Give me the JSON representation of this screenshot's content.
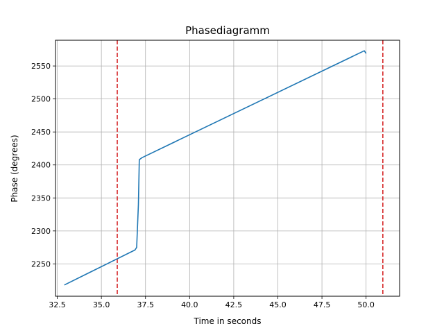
{
  "chart_data": {
    "type": "line",
    "title": "Phasediagramm",
    "xlabel": "Time in seconds",
    "ylabel": "Phase (degrees)",
    "xlim": [
      32.4,
      51.9
    ],
    "ylim": [
      2201,
      2589
    ],
    "xticks": [
      32.5,
      35.0,
      37.5,
      40.0,
      42.5,
      45.0,
      47.5,
      50.0
    ],
    "xtick_labels": [
      "32.5",
      "35.0",
      "37.5",
      "40.0",
      "42.5",
      "45.0",
      "47.5",
      "50.0"
    ],
    "yticks": [
      2250,
      2300,
      2350,
      2400,
      2450,
      2500,
      2550
    ],
    "ytick_labels": [
      "2250",
      "2300",
      "2350",
      "2400",
      "2450",
      "2500",
      "2550"
    ],
    "grid": true,
    "series": [
      {
        "color": "#1f77b4",
        "x": [
          32.9,
          36.9,
          37.0,
          37.1,
          37.15,
          37.3,
          49.9,
          50.0
        ],
        "y": [
          2218,
          2271,
          2275,
          2340,
          2408,
          2411,
          2573,
          2569
        ]
      }
    ],
    "vlines": [
      {
        "x": 35.9,
        "color": "#d62728",
        "style": "dashed"
      },
      {
        "x": 50.95,
        "color": "#d62728",
        "style": "dashed"
      }
    ]
  }
}
